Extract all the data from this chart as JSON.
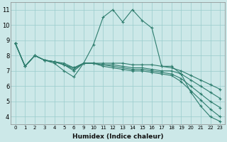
{
  "xlabel": "Humidex (Indice chaleur)",
  "bg_color": "#cce8e8",
  "grid_color": "#99cccc",
  "line_color": "#2e7d6e",
  "ylim": [
    3.5,
    11.5
  ],
  "yticks": [
    4,
    5,
    6,
    7,
    8,
    9,
    10,
    11
  ],
  "xlabels": [
    "0",
    "1",
    "2",
    "3",
    "4",
    "5",
    "6",
    "9",
    "10",
    "11",
    "12",
    "13",
    "14",
    "15",
    "16",
    "17",
    "18",
    "19",
    "20",
    "21",
    "22",
    "23"
  ],
  "lines": [
    {
      "y": [
        8.8,
        7.3,
        8.0,
        7.7,
        7.5,
        7.0,
        6.6,
        7.5,
        8.7,
        10.5,
        11.0,
        10.2,
        11.0,
        10.3,
        9.8,
        7.3,
        7.3,
        6.8,
        5.6,
        4.7,
        4.0,
        3.7
      ]
    },
    {
      "y": [
        8.8,
        7.3,
        8.0,
        7.7,
        7.6,
        7.4,
        7.2,
        7.5,
        7.5,
        7.5,
        7.5,
        7.5,
        7.4,
        7.4,
        7.4,
        7.3,
        7.2,
        7.0,
        6.7,
        6.4,
        6.1,
        5.8
      ]
    },
    {
      "y": [
        8.8,
        7.3,
        8.0,
        7.7,
        7.6,
        7.4,
        7.1,
        7.5,
        7.5,
        7.4,
        7.4,
        7.3,
        7.2,
        7.2,
        7.1,
        7.0,
        7.0,
        6.8,
        6.4,
        6.0,
        5.6,
        5.2
      ]
    },
    {
      "y": [
        8.8,
        7.3,
        8.0,
        7.7,
        7.6,
        7.4,
        7.0,
        7.5,
        7.5,
        7.4,
        7.3,
        7.2,
        7.1,
        7.1,
        7.0,
        6.9,
        6.8,
        6.5,
        6.0,
        5.5,
        5.0,
        4.6
      ]
    },
    {
      "y": [
        8.8,
        7.3,
        8.0,
        7.7,
        7.6,
        7.5,
        7.2,
        7.5,
        7.5,
        7.3,
        7.2,
        7.1,
        7.0,
        7.0,
        6.9,
        6.8,
        6.7,
        6.3,
        5.7,
        5.1,
        4.5,
        4.0
      ]
    }
  ]
}
